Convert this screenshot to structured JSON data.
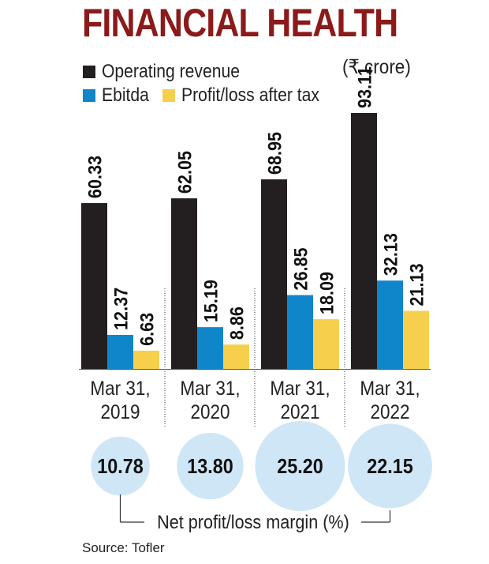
{
  "title": "FINANCIAL HEALTH",
  "unit": "(₹ crore)",
  "source": "Source: Tofler",
  "colors": {
    "title": "#8b1a1a",
    "revenue": "#231f20",
    "ebitda": "#0f86c9",
    "pat": "#f6d04d",
    "margin_circle": "#cfe6f6"
  },
  "chart_data": {
    "type": "bar",
    "categories": [
      "Mar 31, 2019",
      "Mar 31, 2020",
      "Mar 31, 2021",
      "Mar 31, 2022"
    ],
    "category_lines": [
      [
        "Mar 31,",
        "2019"
      ],
      [
        "Mar 31,",
        "2020"
      ],
      [
        "Mar 31,",
        "2021"
      ],
      [
        "Mar 31,",
        "2022"
      ]
    ],
    "series": [
      {
        "name": "Operating revenue",
        "values": [
          60.33,
          62.05,
          68.95,
          93.11
        ],
        "labels": [
          "60.33",
          "62.05",
          "68.95",
          "93.11"
        ]
      },
      {
        "name": "Ebitda",
        "values": [
          12.37,
          15.19,
          26.85,
          32.13
        ],
        "labels": [
          "12.37",
          "15.19",
          "26.85",
          "32.13"
        ]
      },
      {
        "name": "Profit/loss after tax",
        "values": [
          6.63,
          8.86,
          18.09,
          21.13
        ],
        "labels": [
          "6.63",
          "8.86",
          "18.09",
          "21.13"
        ]
      }
    ],
    "ylim": [
      0,
      93.11
    ],
    "legend_position": "top-left",
    "grid": false,
    "net_margin": {
      "label": "Net profit/loss margin (%)",
      "values": [
        10.78,
        13.8,
        25.2,
        22.15
      ],
      "labels": [
        "10.78",
        "13.80",
        "25.20",
        "22.15"
      ]
    }
  }
}
